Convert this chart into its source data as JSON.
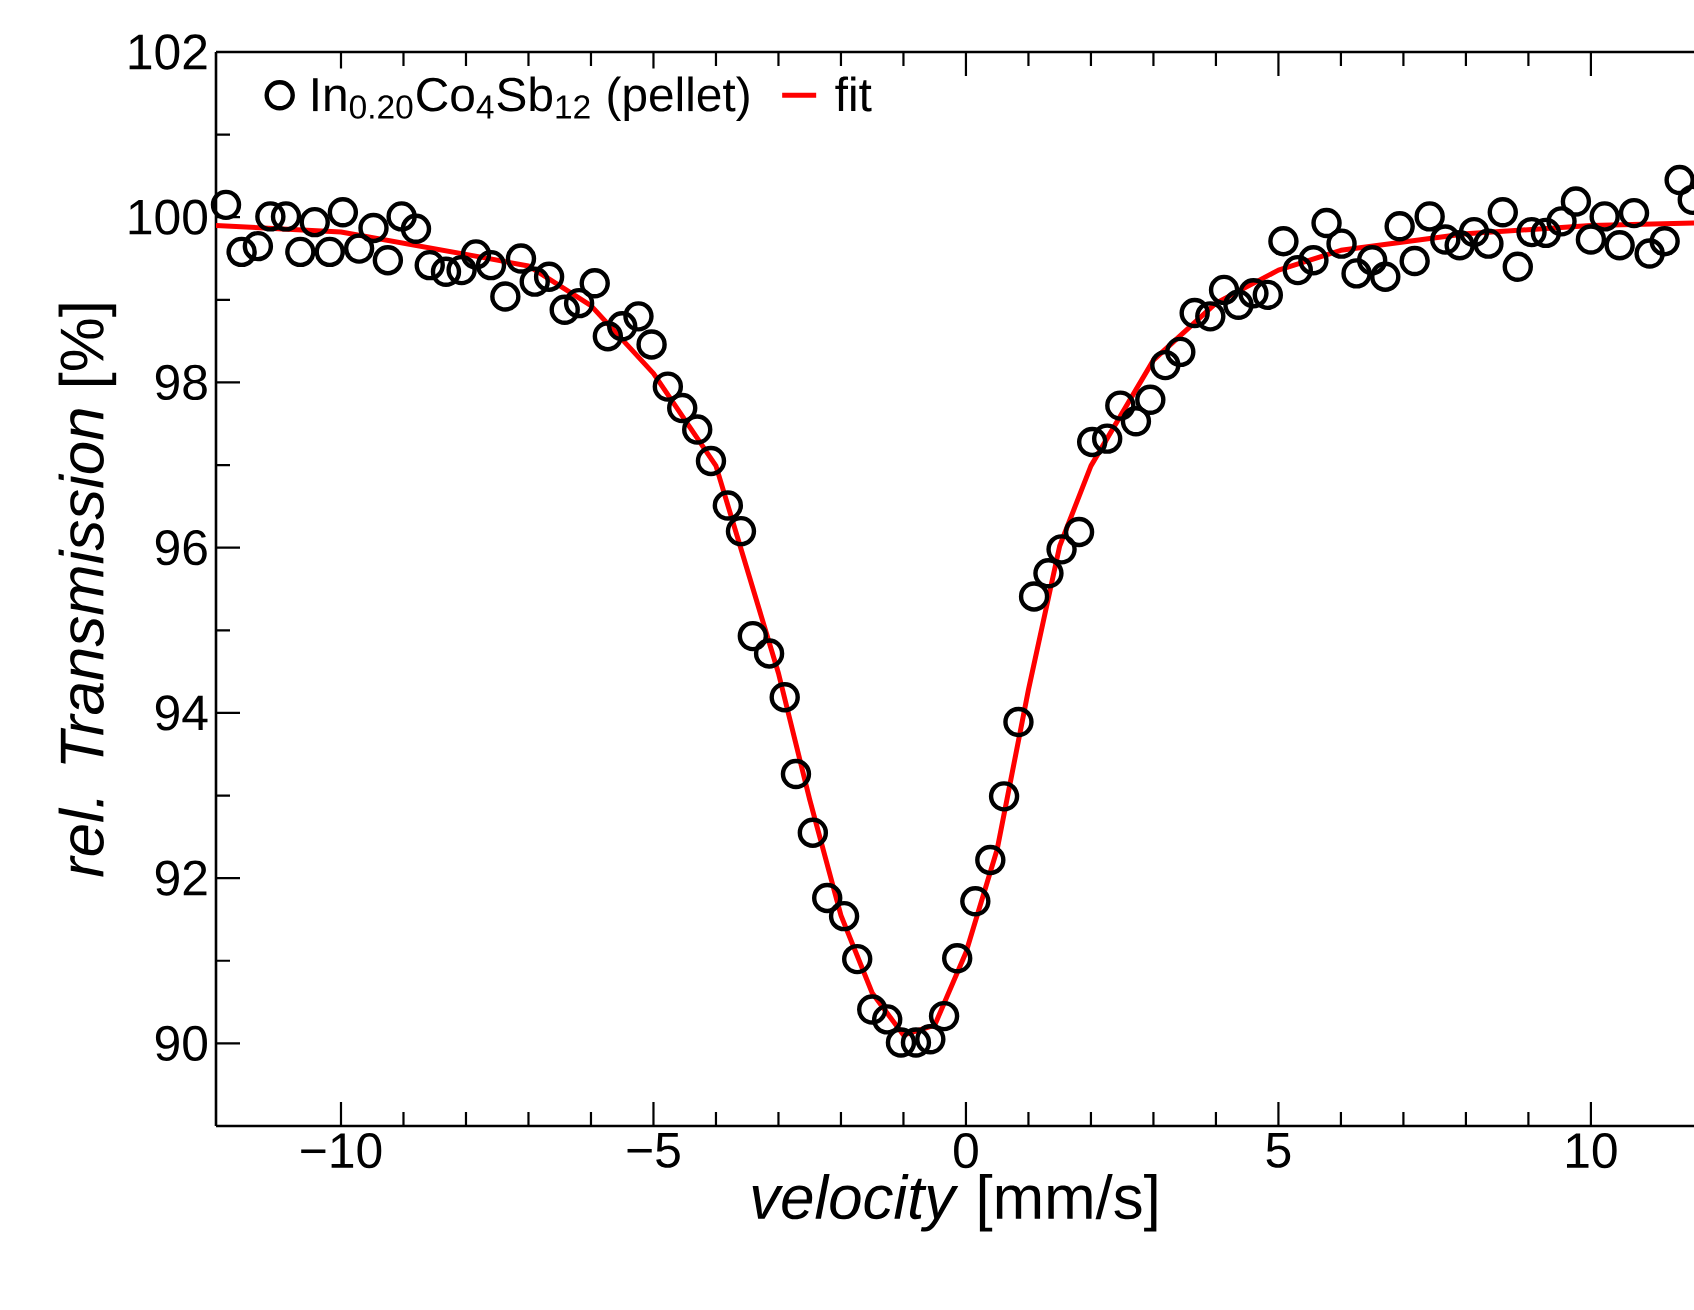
{
  "chart_data": {
    "type": "scatter",
    "xlabel": "*velocity* [mm/s]",
    "ylabel": "*rel. Transmission* [%]",
    "xlim": [
      -12,
      11.65
    ],
    "ylim": [
      89,
      102
    ],
    "xticks": [
      {
        "value": -10,
        "label": "−10"
      },
      {
        "value": -5,
        "label": "−5"
      },
      0,
      5,
      10
    ],
    "yticks": [
      90,
      92,
      94,
      96,
      98,
      100,
      102
    ],
    "legend": "top left",
    "series": [
      {
        "name": "In$_{0.20}$Co$_{4}$Sb$_{12}$ (pellet)",
        "marker": "circle",
        "color": "#000000",
        "x": [
          -11.84,
          -11.59,
          -11.33,
          -11.13,
          -10.88,
          -10.65,
          -10.42,
          -10.18,
          -9.97,
          -9.71,
          -9.48,
          -9.25,
          -9.03,
          -8.8,
          -8.58,
          -8.32,
          -8.07,
          -7.84,
          -7.6,
          -7.37,
          -7.12,
          -6.9,
          -6.67,
          -6.42,
          -6.19,
          -5.94,
          -5.73,
          -5.5,
          -5.24,
          -5.03,
          -4.77,
          -4.54,
          -4.3,
          -4.08,
          -3.81,
          -3.6,
          -3.41,
          -3.15,
          -2.9,
          -2.72,
          -2.45,
          -2.22,
          -1.95,
          -1.74,
          -1.5,
          -1.26,
          -1.04,
          -0.8,
          -0.57,
          -0.35,
          -0.14,
          0.15,
          0.39,
          0.61,
          0.84,
          1.09,
          1.32,
          1.53,
          1.81,
          2.02,
          2.26,
          2.47,
          2.72,
          2.95,
          3.19,
          3.43,
          3.66,
          3.91,
          4.13,
          4.36,
          4.6,
          4.83,
          5.08,
          5.31,
          5.56,
          5.77,
          6.01,
          6.25,
          6.5,
          6.71,
          6.94,
          7.18,
          7.42,
          7.67,
          7.9,
          8.13,
          8.36,
          8.59,
          8.83,
          9.05,
          9.28,
          9.53,
          9.76,
          10.0,
          10.22,
          10.46,
          10.69,
          10.94,
          11.18,
          11.42,
          11.63
        ],
        "values": [
          100.15,
          99.58,
          99.65,
          100.01,
          100.01,
          99.58,
          99.94,
          99.58,
          100.06,
          99.62,
          99.87,
          99.48,
          100.01,
          99.86,
          99.42,
          99.34,
          99.36,
          99.55,
          99.42,
          99.04,
          99.5,
          99.22,
          99.28,
          98.88,
          98.96,
          99.2,
          98.56,
          98.68,
          98.8,
          98.46,
          97.95,
          97.69,
          97.43,
          97.05,
          96.51,
          96.2,
          94.93,
          94.72,
          94.19,
          93.26,
          92.55,
          91.76,
          91.54,
          91.02,
          90.41,
          90.29,
          90.01,
          90.01,
          90.05,
          90.33,
          91.03,
          91.72,
          92.22,
          92.99,
          93.89,
          95.41,
          95.69,
          95.98,
          96.19,
          97.28,
          97.32,
          97.72,
          97.53,
          97.79,
          98.21,
          98.37,
          98.84,
          98.8,
          99.12,
          98.94,
          99.08,
          99.06,
          99.71,
          99.36,
          99.48,
          99.93,
          99.68,
          99.32,
          99.48,
          99.28,
          99.89,
          99.47,
          100.01,
          99.73,
          99.66,
          99.82,
          99.68,
          100.06,
          99.4,
          99.82,
          99.81,
          99.95,
          100.19,
          99.73,
          100.01,
          99.66,
          100.05,
          99.56,
          99.71,
          100.45,
          100.21
        ]
      },
      {
        "name": "fit",
        "type": "line",
        "color": "#ff0000",
        "x": [
          -12,
          -10,
          -8,
          -7,
          -6,
          -5,
          -4,
          -3,
          -2.5,
          -2,
          -1.5,
          -1,
          -0.5,
          0,
          0.5,
          1,
          1.5,
          2,
          3,
          4,
          5,
          6,
          8,
          10,
          11.65
        ],
        "values": [
          99.9,
          99.82,
          99.55,
          99.41,
          98.93,
          98.11,
          96.99,
          94.48,
          92.95,
          91.55,
          90.61,
          90.1,
          90.22,
          91.1,
          92.35,
          94.28,
          96.02,
          96.99,
          98.27,
          98.96,
          99.36,
          99.6,
          99.8,
          99.9,
          99.93
        ]
      }
    ]
  }
}
